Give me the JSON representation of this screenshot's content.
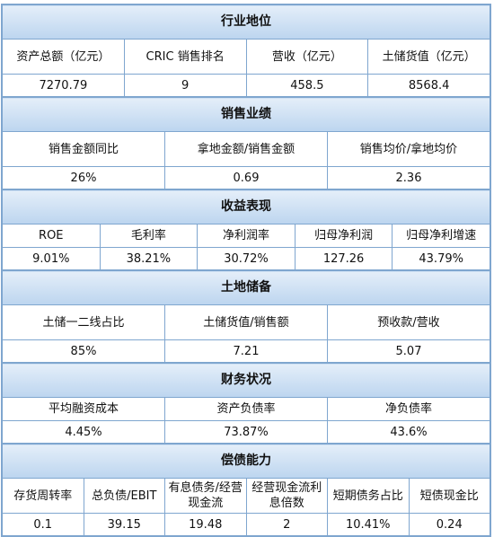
{
  "sections": [
    {
      "title": "行业地位",
      "labels": [
        "资产总额（亿元）",
        "CRIC 销售排名",
        "营收（亿元）",
        "土储货值（亿元）"
      ],
      "values": [
        "7270.79",
        "9",
        "458.5",
        "8568.4"
      ]
    },
    {
      "title": "销售业绩",
      "labels": [
        "销售金额同比",
        "拿地金额/销售金额",
        "销售均价/拿地均价"
      ],
      "values": [
        "26%",
        "0.69",
        "2.36"
      ]
    },
    {
      "title": "收益表现",
      "labels": [
        "ROE",
        "毛利率",
        "净利润率",
        "归母净利润",
        "归母净利增速"
      ],
      "values": [
        "9.01%",
        "38.21%",
        "30.72%",
        "127.26",
        "43.79%"
      ]
    },
    {
      "title": "土地储备",
      "labels": [
        "土储一二线占比",
        "土储货值/销售额",
        "预收款/营收"
      ],
      "values": [
        "85%",
        "7.21",
        "5.07"
      ]
    },
    {
      "title": "财务状况",
      "labels": [
        "平均融资成本",
        "资产负债率",
        "净负债率"
      ],
      "values": [
        "4.45%",
        "73.87%",
        "43.6%"
      ]
    },
    {
      "title": "偿债能力",
      "labels": [
        "存货周转率",
        "总负债/EBIT",
        "有息债务/经营现金流",
        "经营现金流利息倍数",
        "短期债务占比",
        "短债现金比"
      ],
      "values": [
        "0.1",
        "39.15",
        "19.48",
        "2",
        "10.41%",
        "0.24"
      ]
    }
  ]
}
